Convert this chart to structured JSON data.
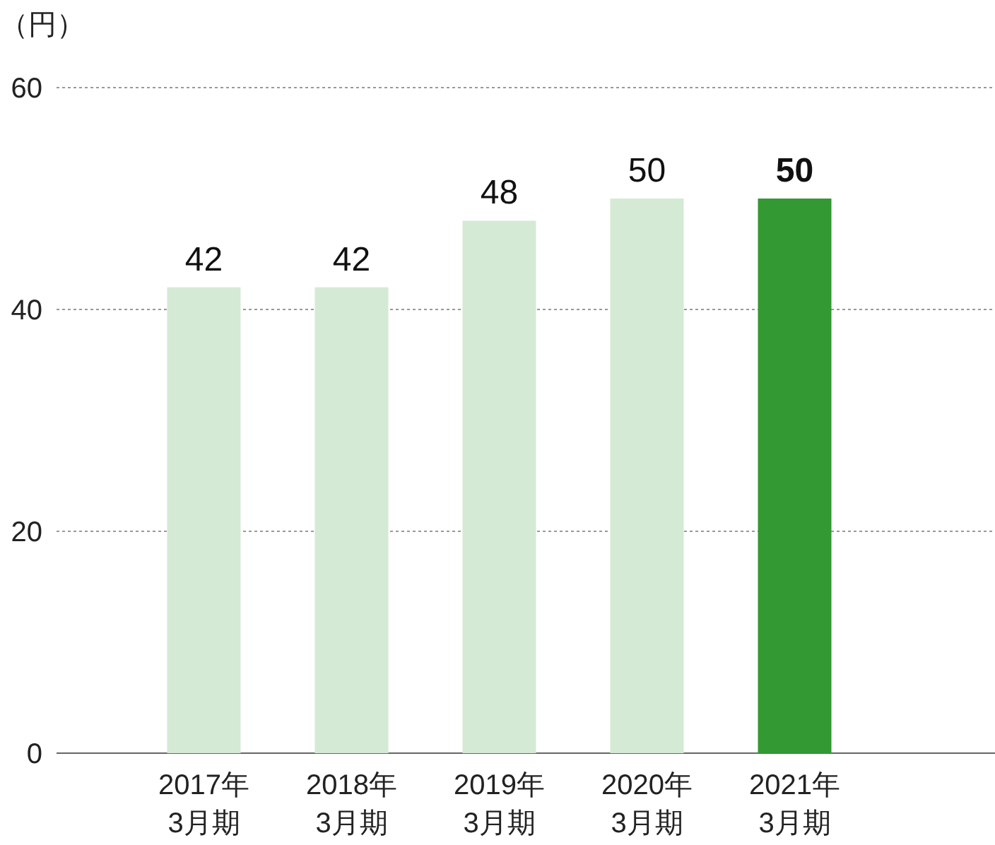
{
  "chart_data": {
    "type": "bar",
    "ylabel": "（円）",
    "categories": [
      "2017年\n3月期",
      "2018年\n3月期",
      "2019年\n3月期",
      "2020年\n3月期",
      "2021年\n3月期"
    ],
    "values": [
      42,
      42,
      48,
      50,
      50
    ],
    "colors": [
      "#d5ead5",
      "#d5ead5",
      "#d5ead5",
      "#d5ead5",
      "#339933"
    ],
    "ylim": [
      0,
      60
    ],
    "yticks": [
      0,
      20,
      40,
      60
    ],
    "grid": "y",
    "data_labels": true
  }
}
